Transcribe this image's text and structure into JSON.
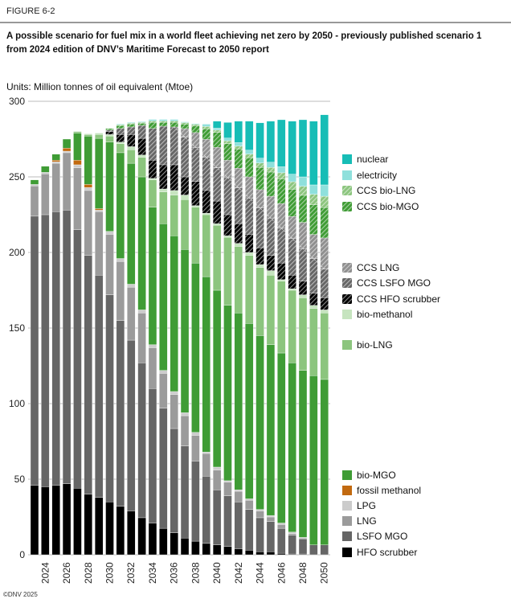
{
  "figure_label": "FIGURE 6-2",
  "title": "A possible scenario for fuel mix in a world fleet achieving net zero by 2050 - previously published scenario 1 from 2024 edition of DNV’s Maritime Forecast to 2050 report",
  "units": "Units: Million tonnes of oil equivalent (Mtoe)",
  "copyright": "©DNV 2025",
  "chart_data": {
    "type": "bar",
    "stacked": true,
    "title": "",
    "xlabel": "",
    "ylabel": "",
    "ylim": [
      0,
      300
    ],
    "yticks": [
      0,
      50,
      100,
      150,
      200,
      250,
      300
    ],
    "grid": true,
    "legend_position": "right",
    "categories": [
      2023,
      2024,
      2025,
      2026,
      2027,
      2028,
      2029,
      2030,
      2031,
      2032,
      2033,
      2034,
      2035,
      2036,
      2037,
      2038,
      2039,
      2040,
      2041,
      2042,
      2043,
      2044,
      2045,
      2046,
      2047,
      2048,
      2049,
      2050
    ],
    "xtick_labels": [
      "2024",
      "2026",
      "2028",
      "2030",
      "2032",
      "2034",
      "2036",
      "2038",
      "2040",
      "2042",
      "2044",
      "2046",
      "2048",
      "2050"
    ],
    "series": [
      {
        "name": "HFO scrubber",
        "color": "#000000",
        "hatched": false,
        "values": [
          46,
          45,
          46,
          47,
          44,
          40,
          38,
          35,
          32,
          29,
          24.5,
          21,
          17.5,
          14.5,
          11,
          9,
          7.5,
          6.5,
          5.5,
          4,
          3,
          2,
          2,
          1,
          0.5,
          0.5,
          0,
          0
        ]
      },
      {
        "name": "LSFO MGO",
        "color": "#666666",
        "hatched": false,
        "values": [
          178,
          180,
          181,
          181,
          171,
          158,
          147,
          137,
          123,
          113,
          102.5,
          89,
          79.5,
          69,
          61,
          53,
          44.5,
          36.5,
          33.5,
          31,
          27,
          22.5,
          20,
          16.5,
          12.5,
          10,
          6.5,
          6.5
        ]
      },
      {
        "name": "LNG",
        "color": "#9b9b9b",
        "hatched": false,
        "values": [
          20,
          27,
          32,
          38,
          41,
          43,
          42,
          40,
          39,
          35,
          33,
          27,
          23,
          22.5,
          20,
          17,
          15,
          13,
          9,
          7,
          6,
          4.5,
          3,
          2.5,
          1,
          0.5,
          0,
          0
        ]
      },
      {
        "name": "LPG",
        "color": "#cccccc",
        "hatched": false,
        "values": [
          1,
          1,
          1,
          1,
          2,
          2,
          1,
          2,
          2,
          2,
          2,
          2,
          2,
          2,
          2,
          2,
          1,
          2,
          1,
          1,
          1,
          1,
          1,
          1,
          1,
          0.5,
          0,
          0
        ]
      },
      {
        "name": "fossil methanol",
        "color": "#c26a10",
        "hatched": false,
        "values": [
          0,
          0,
          1,
          2,
          3,
          2,
          1,
          0,
          0,
          0,
          0,
          0,
          0,
          0,
          0,
          0,
          0,
          0,
          0,
          0,
          0,
          0,
          0,
          0,
          0,
          0,
          0,
          0
        ]
      },
      {
        "name": "bio-MGO",
        "color": "#3f9c35",
        "hatched": false,
        "values": [
          3,
          4,
          4,
          6,
          18,
          32,
          46.5,
          59,
          70,
          80,
          88,
          91,
          97,
          103,
          108,
          112,
          116,
          117,
          116,
          117,
          116,
          115,
          113,
          112.5,
          112,
          110.5,
          112,
          109.5
        ]
      },
      {
        "name": "bio-LNG",
        "color": "#8cc57e",
        "hatched": false,
        "values": [
          0,
          0,
          0,
          0,
          1,
          1,
          2.5,
          4,
          6,
          9,
          13,
          18,
          21,
          27,
          33,
          37,
          41,
          43,
          45,
          44,
          45,
          45,
          46,
          47.5,
          48,
          48,
          44.5,
          44
        ]
      },
      {
        "name": "bio-methanol",
        "color": "#c6e4bf",
        "hatched": false,
        "values": [
          0,
          0,
          0,
          0,
          0,
          0.5,
          1,
          1,
          1,
          2,
          1.5,
          1,
          2,
          3,
          3,
          1,
          1,
          1,
          1,
          2,
          2,
          2,
          3,
          1,
          1,
          2,
          2,
          2
        ]
      },
      {
        "name": "CCS HFO scrubber",
        "color": "#000000",
        "hatched": true,
        "values": [
          0,
          0,
          0,
          0,
          0,
          0,
          0,
          2,
          5,
          8,
          11,
          12,
          16,
          17,
          12,
          16,
          15,
          15,
          14,
          13,
          12,
          11,
          10,
          11,
          9,
          9,
          8,
          8
        ]
      },
      {
        "name": "CCS LSFO MGO",
        "color": "#666666",
        "hatched": true,
        "values": [
          0,
          0,
          0,
          0,
          0,
          0,
          0,
          1,
          4,
          5,
          8.5,
          21,
          25.5,
          25,
          26.3,
          22.6,
          21.9,
          22,
          24.5,
          23.8,
          24.1,
          26.4,
          24.7,
          23,
          24.3,
          21.6,
          22.9,
          19
        ]
      },
      {
        "name": "CCS LNG",
        "color": "#8f8f8f",
        "hatched": true,
        "values": [
          0,
          0,
          0,
          0,
          0,
          0,
          0,
          0,
          0,
          0,
          0,
          0,
          0,
          0,
          5.6,
          9.7,
          11.9,
          13.5,
          11.5,
          12.9,
          13.9,
          12.1,
          14.5,
          16.3,
          14.5,
          17.3,
          16,
          20.6
        ]
      },
      {
        "name": "CCS bio-MGO",
        "color": "#3f9c35",
        "hatched": true,
        "values": [
          0,
          0,
          0,
          0,
          0,
          0,
          0,
          1,
          2,
          2,
          1.5,
          4,
          2.5,
          3,
          3,
          4.5,
          7,
          10,
          10.9,
          12.7,
          12.6,
          14.7,
          16,
          16.4,
          18,
          17.9,
          19.6,
          20.1
        ]
      },
      {
        "name": "CCS bio-LNG",
        "color": "#8cc57e",
        "hatched": true,
        "values": [
          0,
          0,
          0,
          0,
          0,
          0,
          0,
          0,
          0.5,
          0.5,
          0.5,
          1,
          1,
          1,
          1,
          1,
          1.5,
          1.5,
          2,
          2,
          2.5,
          3,
          3,
          4,
          5,
          6,
          7,
          7.5
        ]
      },
      {
        "name": "electricity",
        "color": "#8fe0dc",
        "hatched": false,
        "values": [
          0,
          0,
          0,
          0,
          0,
          0,
          0,
          0,
          0.5,
          0.5,
          0.5,
          1,
          1,
          1,
          0.5,
          0.5,
          1,
          1.3,
          1.8,
          2.3,
          2.6,
          3.2,
          3.5,
          4,
          5,
          6.2,
          6.2,
          7.5
        ]
      },
      {
        "name": "nuclear",
        "color": "#17bdb6",
        "hatched": false,
        "values": [
          0,
          0,
          0,
          0,
          0,
          0,
          0,
          0,
          0,
          0,
          0,
          0,
          0,
          0,
          0,
          0,
          0.5,
          4.6,
          10.3,
          14.2,
          19.2,
          23.4,
          27.2,
          31.1,
          35.1,
          37.8,
          42.2,
          46.4
        ]
      }
    ],
    "legend_order": [
      "nuclear",
      "electricity",
      "CCS bio-LNG",
      "CCS bio-MGO",
      "CCS LNG",
      "CCS LSFO MGO",
      "CCS HFO scrubber",
      "bio-methanol",
      "bio-LNG",
      "bio-MGO",
      "fossil methanol",
      "LPG",
      "LNG",
      "LSFO MGO",
      "HFO scrubber"
    ]
  }
}
